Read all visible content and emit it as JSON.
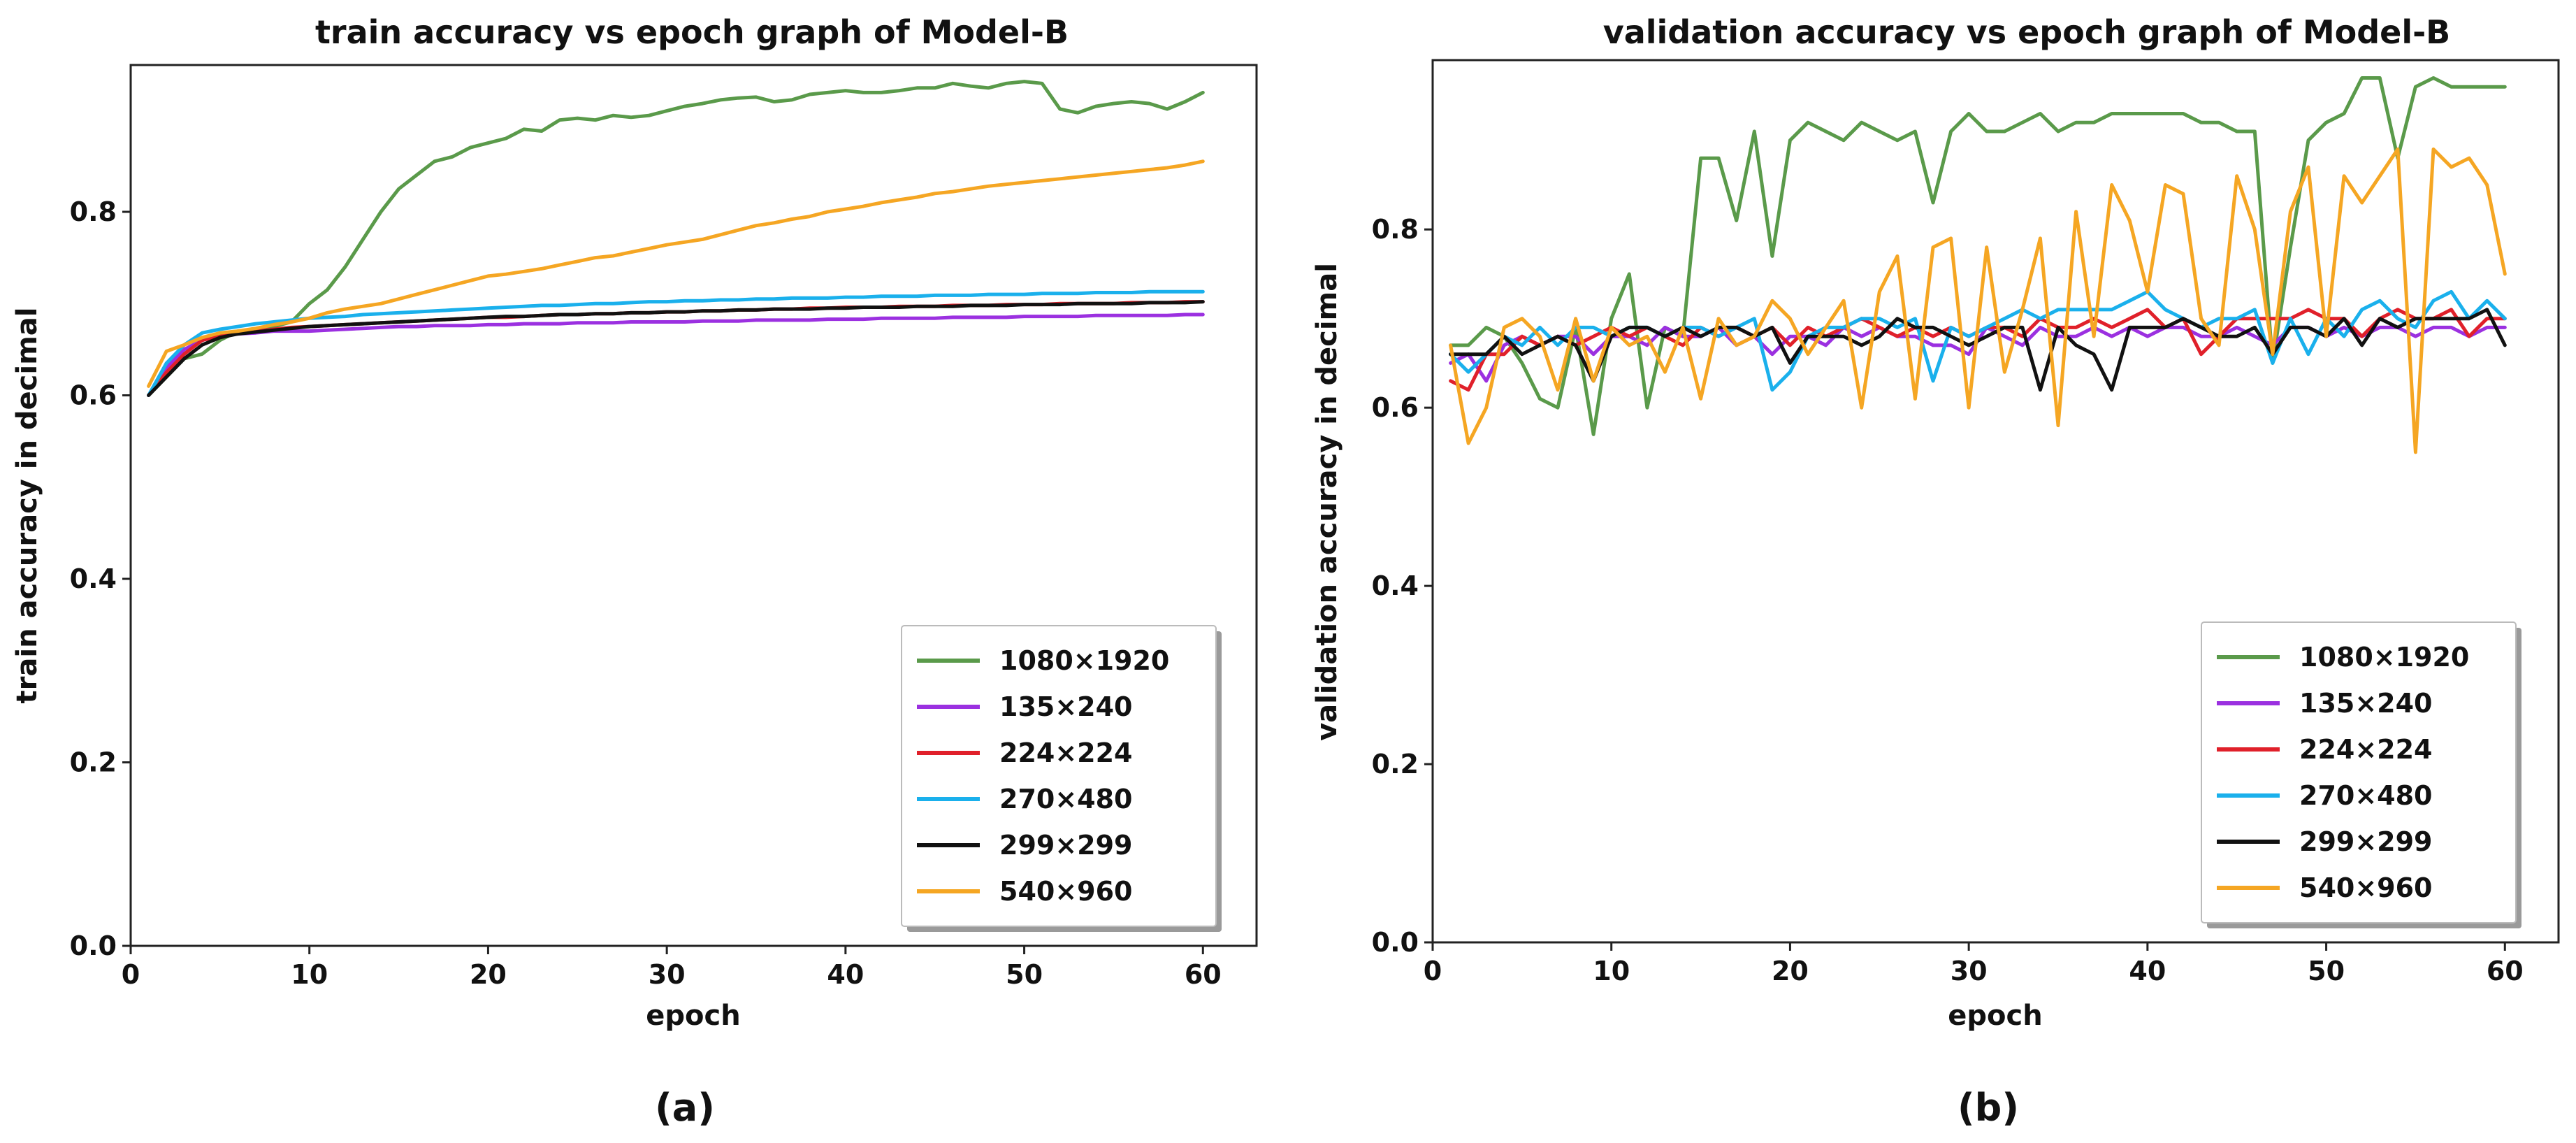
{
  "chart_data": [
    {
      "type": "line",
      "panel_label": "(a)",
      "title": "train accuracy vs epoch graph of Model-B",
      "xlabel": "epoch",
      "ylabel": "train accuracy in decimal",
      "xlim": [
        0,
        63
      ],
      "ylim": [
        0.0,
        0.96
      ],
      "xticks": [
        0,
        10,
        20,
        30,
        40,
        50,
        60
      ],
      "yticks": [
        0.0,
        0.2,
        0.4,
        0.6,
        0.8
      ],
      "legend_position": "bottom-right",
      "x": [
        1,
        2,
        3,
        4,
        5,
        6,
        7,
        8,
        9,
        10,
        11,
        12,
        13,
        14,
        15,
        16,
        17,
        18,
        19,
        20,
        21,
        22,
        23,
        24,
        25,
        26,
        27,
        28,
        29,
        30,
        31,
        32,
        33,
        34,
        35,
        36,
        37,
        38,
        39,
        40,
        41,
        42,
        43,
        44,
        45,
        46,
        47,
        48,
        49,
        50,
        51,
        52,
        53,
        54,
        55,
        56,
        57,
        58,
        59,
        60
      ],
      "series": [
        {
          "name": "1080×1920",
          "color": "#5a9a4a",
          "values": [
            0.6,
            0.62,
            0.64,
            0.645,
            0.66,
            0.67,
            0.67,
            0.675,
            0.68,
            0.7,
            0.715,
            0.74,
            0.77,
            0.8,
            0.825,
            0.84,
            0.855,
            0.86,
            0.87,
            0.875,
            0.88,
            0.89,
            0.888,
            0.9,
            0.902,
            0.9,
            0.905,
            0.903,
            0.905,
            0.91,
            0.915,
            0.918,
            0.922,
            0.924,
            0.925,
            0.92,
            0.922,
            0.928,
            0.93,
            0.932,
            0.93,
            0.93,
            0.932,
            0.935,
            0.935,
            0.94,
            0.937,
            0.935,
            0.94,
            0.942,
            0.94,
            0.912,
            0.908,
            0.915,
            0.918,
            0.92,
            0.918,
            0.912,
            0.92,
            0.93
          ]
        },
        {
          "name": "135×240",
          "color": "#9b30e0",
          "values": [
            0.6,
            0.63,
            0.65,
            0.66,
            0.665,
            0.667,
            0.668,
            0.67,
            0.67,
            0.67,
            0.671,
            0.672,
            0.673,
            0.674,
            0.675,
            0.675,
            0.676,
            0.676,
            0.676,
            0.677,
            0.677,
            0.678,
            0.678,
            0.678,
            0.679,
            0.679,
            0.679,
            0.68,
            0.68,
            0.68,
            0.68,
            0.681,
            0.681,
            0.681,
            0.682,
            0.682,
            0.682,
            0.682,
            0.683,
            0.683,
            0.683,
            0.684,
            0.684,
            0.684,
            0.684,
            0.685,
            0.685,
            0.685,
            0.685,
            0.686,
            0.686,
            0.686,
            0.686,
            0.687,
            0.687,
            0.687,
            0.687,
            0.687,
            0.688,
            0.688
          ]
        },
        {
          "name": "224×224",
          "color": "#e0202a",
          "values": [
            0.6,
            0.625,
            0.645,
            0.66,
            0.665,
            0.668,
            0.67,
            0.672,
            0.674,
            0.675,
            0.676,
            0.677,
            0.678,
            0.679,
            0.68,
            0.681,
            0.682,
            0.683,
            0.684,
            0.685,
            0.685,
            0.686,
            0.687,
            0.688,
            0.688,
            0.689,
            0.689,
            0.69,
            0.69,
            0.691,
            0.691,
            0.692,
            0.692,
            0.693,
            0.693,
            0.694,
            0.694,
            0.695,
            0.695,
            0.696,
            0.696,
            0.696,
            0.697,
            0.697,
            0.697,
            0.698,
            0.698,
            0.698,
            0.699,
            0.699,
            0.699,
            0.7,
            0.7,
            0.7,
            0.7,
            0.701,
            0.701,
            0.701,
            0.702,
            0.702
          ]
        },
        {
          "name": "270×480",
          "color": "#1ab0ec",
          "values": [
            0.6,
            0.635,
            0.655,
            0.668,
            0.672,
            0.675,
            0.678,
            0.68,
            0.682,
            0.684,
            0.685,
            0.686,
            0.688,
            0.689,
            0.69,
            0.691,
            0.692,
            0.693,
            0.694,
            0.695,
            0.696,
            0.697,
            0.698,
            0.698,
            0.699,
            0.7,
            0.7,
            0.701,
            0.702,
            0.702,
            0.703,
            0.703,
            0.704,
            0.704,
            0.705,
            0.705,
            0.706,
            0.706,
            0.706,
            0.707,
            0.707,
            0.708,
            0.708,
            0.708,
            0.709,
            0.709,
            0.709,
            0.71,
            0.71,
            0.71,
            0.711,
            0.711,
            0.711,
            0.712,
            0.712,
            0.712,
            0.713,
            0.713,
            0.713,
            0.713
          ]
        },
        {
          "name": "299×299",
          "color": "#111111",
          "values": [
            0.6,
            0.62,
            0.64,
            0.655,
            0.663,
            0.667,
            0.669,
            0.671,
            0.673,
            0.675,
            0.676,
            0.677,
            0.678,
            0.679,
            0.68,
            0.681,
            0.682,
            0.683,
            0.684,
            0.685,
            0.686,
            0.686,
            0.687,
            0.688,
            0.688,
            0.689,
            0.689,
            0.69,
            0.69,
            0.691,
            0.691,
            0.692,
            0.692,
            0.693,
            0.693,
            0.694,
            0.694,
            0.694,
            0.695,
            0.695,
            0.696,
            0.696,
            0.696,
            0.697,
            0.697,
            0.697,
            0.698,
            0.698,
            0.698,
            0.699,
            0.699,
            0.699,
            0.7,
            0.7,
            0.7,
            0.7,
            0.701,
            0.701,
            0.701,
            0.702
          ]
        },
        {
          "name": "540×960",
          "color": "#f5a623",
          "values": [
            0.61,
            0.648,
            0.655,
            0.663,
            0.668,
            0.67,
            0.673,
            0.677,
            0.68,
            0.684,
            0.69,
            0.694,
            0.697,
            0.7,
            0.705,
            0.71,
            0.715,
            0.72,
            0.725,
            0.73,
            0.732,
            0.735,
            0.738,
            0.742,
            0.746,
            0.75,
            0.752,
            0.756,
            0.76,
            0.764,
            0.767,
            0.77,
            0.775,
            0.78,
            0.785,
            0.788,
            0.792,
            0.795,
            0.8,
            0.803,
            0.806,
            0.81,
            0.813,
            0.816,
            0.82,
            0.822,
            0.825,
            0.828,
            0.83,
            0.832,
            0.834,
            0.836,
            0.838,
            0.84,
            0.842,
            0.844,
            0.846,
            0.848,
            0.851,
            0.855
          ]
        }
      ]
    },
    {
      "type": "line",
      "panel_label": "(b)",
      "title": "validation accuracy vs epoch graph of Model-B",
      "xlabel": "epoch",
      "ylabel": "validation accuracy in decimal",
      "xlim": [
        0,
        63
      ],
      "ylim": [
        0.0,
        0.99
      ],
      "xticks": [
        0,
        10,
        20,
        30,
        40,
        50,
        60
      ],
      "yticks": [
        0.0,
        0.2,
        0.4,
        0.6,
        0.8
      ],
      "legend_position": "bottom-right",
      "x": [
        1,
        2,
        3,
        4,
        5,
        6,
        7,
        8,
        9,
        10,
        11,
        12,
        13,
        14,
        15,
        16,
        17,
        18,
        19,
        20,
        21,
        22,
        23,
        24,
        25,
        26,
        27,
        28,
        29,
        30,
        31,
        32,
        33,
        34,
        35,
        36,
        37,
        38,
        39,
        40,
        41,
        42,
        43,
        44,
        45,
        46,
        47,
        48,
        49,
        50,
        51,
        52,
        53,
        54,
        55,
        56,
        57,
        58,
        59,
        60
      ],
      "series": [
        {
          "name": "1080×1920",
          "color": "#5a9a4a",
          "values": [
            0.67,
            0.67,
            0.69,
            0.68,
            0.65,
            0.61,
            0.6,
            0.69,
            0.57,
            0.7,
            0.75,
            0.6,
            0.69,
            0.68,
            0.88,
            0.88,
            0.81,
            0.91,
            0.77,
            0.9,
            0.92,
            0.91,
            0.9,
            0.92,
            0.91,
            0.9,
            0.91,
            0.83,
            0.91,
            0.93,
            0.91,
            0.91,
            0.92,
            0.93,
            0.91,
            0.92,
            0.92,
            0.93,
            0.93,
            0.93,
            0.93,
            0.93,
            0.92,
            0.92,
            0.91,
            0.91,
            0.65,
            0.78,
            0.9,
            0.92,
            0.93,
            0.97,
            0.97,
            0.88,
            0.96,
            0.97,
            0.96,
            0.96,
            0.96,
            0.96
          ]
        },
        {
          "name": "135×240",
          "color": "#9b30e0",
          "values": [
            0.65,
            0.66,
            0.63,
            0.67,
            0.68,
            0.67,
            0.68,
            0.68,
            0.66,
            0.68,
            0.68,
            0.67,
            0.69,
            0.68,
            0.68,
            0.69,
            0.67,
            0.68,
            0.66,
            0.68,
            0.68,
            0.67,
            0.69,
            0.68,
            0.69,
            0.68,
            0.68,
            0.67,
            0.67,
            0.66,
            0.69,
            0.68,
            0.67,
            0.69,
            0.68,
            0.68,
            0.69,
            0.68,
            0.69,
            0.68,
            0.69,
            0.69,
            0.68,
            0.68,
            0.69,
            0.68,
            0.67,
            0.69,
            0.69,
            0.68,
            0.69,
            0.68,
            0.69,
            0.69,
            0.68,
            0.69,
            0.69,
            0.68,
            0.69,
            0.69
          ]
        },
        {
          "name": "224×224",
          "color": "#e0202a",
          "values": [
            0.63,
            0.62,
            0.66,
            0.66,
            0.68,
            0.67,
            0.68,
            0.67,
            0.68,
            0.69,
            0.68,
            0.69,
            0.68,
            0.67,
            0.69,
            0.68,
            0.69,
            0.68,
            0.69,
            0.67,
            0.69,
            0.68,
            0.69,
            0.7,
            0.69,
            0.68,
            0.69,
            0.68,
            0.69,
            0.68,
            0.69,
            0.69,
            0.68,
            0.7,
            0.69,
            0.69,
            0.7,
            0.69,
            0.7,
            0.71,
            0.69,
            0.7,
            0.66,
            0.68,
            0.7,
            0.7,
            0.7,
            0.7,
            0.71,
            0.7,
            0.7,
            0.68,
            0.7,
            0.71,
            0.7,
            0.7,
            0.71,
            0.68,
            0.7,
            0.7
          ]
        },
        {
          "name": "270×480",
          "color": "#1ab0ec",
          "values": [
            0.66,
            0.64,
            0.66,
            0.68,
            0.67,
            0.69,
            0.67,
            0.69,
            0.69,
            0.68,
            0.69,
            0.69,
            0.68,
            0.69,
            0.69,
            0.68,
            0.69,
            0.7,
            0.62,
            0.64,
            0.68,
            0.69,
            0.69,
            0.7,
            0.7,
            0.69,
            0.7,
            0.63,
            0.69,
            0.68,
            0.69,
            0.7,
            0.71,
            0.7,
            0.71,
            0.71,
            0.71,
            0.71,
            0.72,
            0.73,
            0.71,
            0.7,
            0.69,
            0.7,
            0.7,
            0.71,
            0.65,
            0.7,
            0.66,
            0.7,
            0.68,
            0.71,
            0.72,
            0.7,
            0.69,
            0.72,
            0.73,
            0.7,
            0.72,
            0.7
          ]
        },
        {
          "name": "299×299",
          "color": "#111111",
          "values": [
            0.66,
            0.66,
            0.66,
            0.68,
            0.66,
            0.67,
            0.68,
            0.67,
            0.63,
            0.68,
            0.69,
            0.69,
            0.68,
            0.69,
            0.68,
            0.69,
            0.69,
            0.68,
            0.69,
            0.65,
            0.68,
            0.68,
            0.68,
            0.67,
            0.68,
            0.7,
            0.69,
            0.69,
            0.68,
            0.67,
            0.68,
            0.69,
            0.69,
            0.62,
            0.69,
            0.67,
            0.66,
            0.62,
            0.69,
            0.69,
            0.69,
            0.7,
            0.69,
            0.68,
            0.68,
            0.69,
            0.66,
            0.69,
            0.69,
            0.68,
            0.7,
            0.67,
            0.7,
            0.69,
            0.7,
            0.7,
            0.7,
            0.7,
            0.71,
            0.67
          ]
        },
        {
          "name": "540×960",
          "color": "#f5a623",
          "values": [
            0.67,
            0.56,
            0.6,
            0.69,
            0.7,
            0.68,
            0.62,
            0.7,
            0.63,
            0.69,
            0.67,
            0.68,
            0.64,
            0.69,
            0.61,
            0.7,
            0.67,
            0.68,
            0.72,
            0.7,
            0.66,
            0.69,
            0.72,
            0.6,
            0.73,
            0.77,
            0.61,
            0.78,
            0.79,
            0.6,
            0.78,
            0.64,
            0.71,
            0.79,
            0.58,
            0.82,
            0.68,
            0.85,
            0.81,
            0.73,
            0.85,
            0.84,
            0.7,
            0.67,
            0.86,
            0.8,
            0.66,
            0.82,
            0.87,
            0.68,
            0.86,
            0.83,
            0.86,
            0.89,
            0.55,
            0.89,
            0.87,
            0.88,
            0.85,
            0.75
          ]
        }
      ]
    }
  ]
}
